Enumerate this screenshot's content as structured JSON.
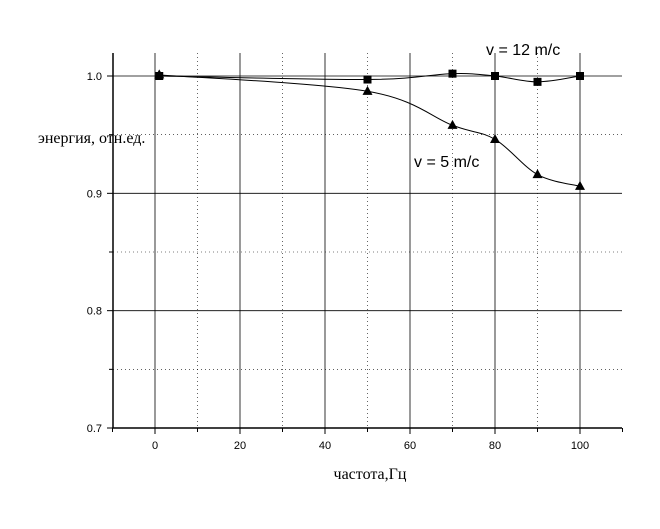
{
  "chart_data": {
    "type": "line",
    "xlabel": "частота,Гц",
    "ylabel": "энергия, отн.ед.",
    "xlim": [
      -10,
      110
    ],
    "ylim": [
      0.7,
      1.03
    ],
    "x_ticks": [
      0,
      20,
      40,
      60,
      80,
      100
    ],
    "y_ticks": [
      0.7,
      0.8,
      0.9,
      1.0
    ],
    "x_tick_labels": [
      "0",
      "20",
      "40",
      "60",
      "80",
      "100"
    ],
    "y_tick_labels": [
      "0.7",
      "0.8",
      "0.9",
      "1.0"
    ],
    "grid": true,
    "series": [
      {
        "name": "v = 12 m/c",
        "marker": "square",
        "x": [
          1,
          50,
          70,
          80,
          90,
          100
        ],
        "y": [
          1.0,
          0.997,
          1.002,
          1.0,
          0.995,
          1.0
        ]
      },
      {
        "name": "v = 5 m/c",
        "marker": "triangle",
        "x": [
          1,
          50,
          70,
          80,
          90,
          100
        ],
        "y": [
          1.001,
          0.987,
          0.958,
          0.946,
          0.916,
          0.906
        ]
      }
    ]
  }
}
